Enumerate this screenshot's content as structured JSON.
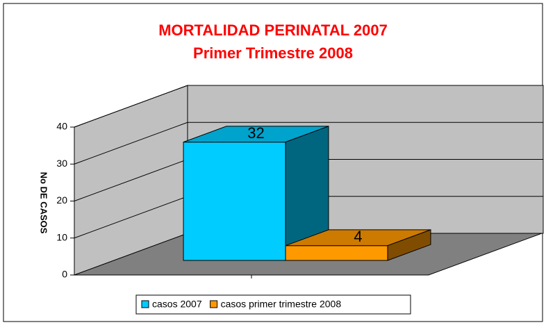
{
  "chart_data": {
    "type": "bar3d",
    "title": "MORTALIDAD PERINATAL 2007",
    "subtitle": "Primer Trimestre 2008",
    "y_label": "No DE CASOS",
    "categories": [
      null
    ],
    "series": [
      {
        "name": "casos 2007",
        "color": "#00ccff",
        "values": [
          32
        ]
      },
      {
        "name": "casos primer trimestre 2008",
        "color": "#ff9900",
        "values": [
          4
        ]
      }
    ],
    "ylim": [
      0,
      40
    ],
    "yticks": [
      0,
      10,
      20,
      30,
      40
    ],
    "grid": true,
    "legend": "bottom"
  }
}
